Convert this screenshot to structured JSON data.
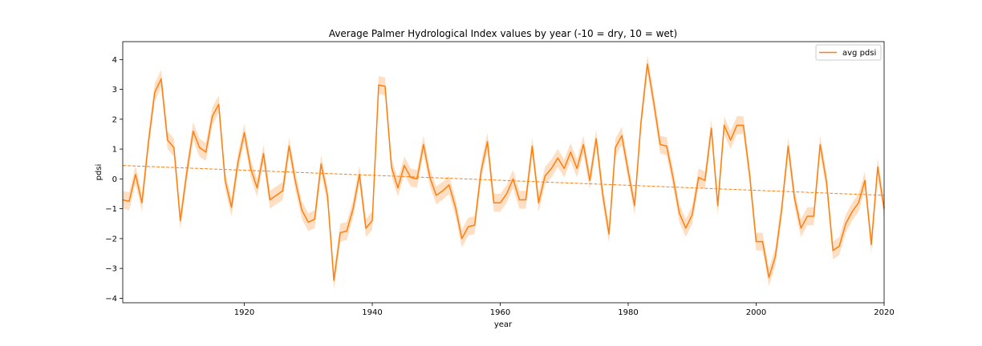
{
  "chart_data": {
    "type": "line",
    "title": "Average Palmer Hydrological Index values by year (-10 = dry, 10 = wet)",
    "xlabel": "year",
    "ylabel": "pdsi",
    "xlim": [
      1901,
      2020
    ],
    "ylim": [
      -4.15,
      4.6
    ],
    "xticks": [
      1920,
      1940,
      1960,
      1980,
      2000,
      2020
    ],
    "yticks": [
      -4,
      -3,
      -2,
      -1,
      0,
      1,
      2,
      3,
      4
    ],
    "grid": false,
    "legend": {
      "position": "top-right",
      "entries": [
        "avg pdsi"
      ]
    },
    "colors": {
      "line": "#ff7f0e",
      "band": "#ff7f0e",
      "trend": "#ff7f0e"
    },
    "series": [
      {
        "name": "avg pdsi",
        "x": [
          1901,
          1902,
          1903,
          1904,
          1905,
          1906,
          1907,
          1908,
          1909,
          1910,
          1911,
          1912,
          1913,
          1914,
          1915,
          1916,
          1917,
          1918,
          1919,
          1920,
          1921,
          1922,
          1923,
          1924,
          1925,
          1926,
          1927,
          1928,
          1929,
          1930,
          1931,
          1932,
          1933,
          1934,
          1935,
          1936,
          1937,
          1938,
          1939,
          1940,
          1941,
          1942,
          1943,
          1944,
          1945,
          1946,
          1947,
          1948,
          1949,
          1950,
          1951,
          1952,
          1953,
          1954,
          1955,
          1956,
          1957,
          1958,
          1959,
          1960,
          1961,
          1962,
          1963,
          1964,
          1965,
          1966,
          1967,
          1968,
          1969,
          1970,
          1971,
          1972,
          1973,
          1974,
          1975,
          1976,
          1977,
          1978,
          1979,
          1980,
          1981,
          1982,
          1983,
          1984,
          1985,
          1986,
          1987,
          1988,
          1989,
          1990,
          1991,
          1992,
          1993,
          1994,
          1995,
          1996,
          1997,
          1998,
          1999,
          2000,
          2001,
          2002,
          2003,
          2004,
          2005,
          2006,
          2007,
          2008,
          2009,
          2010,
          2011,
          2012,
          2013,
          2014,
          2015,
          2016,
          2017,
          2018,
          2019,
          2020
        ],
        "values": [
          -0.7,
          -0.75,
          0.15,
          -0.8,
          1.2,
          2.9,
          3.35,
          1.3,
          1.05,
          -1.4,
          0.2,
          1.6,
          1.05,
          0.9,
          2.1,
          2.5,
          -0.05,
          -0.95,
          0.55,
          1.55,
          0.35,
          -0.3,
          0.85,
          -0.7,
          -0.55,
          -0.4,
          1.1,
          -0.1,
          -1.05,
          -1.45,
          -1.35,
          0.5,
          -0.55,
          -3.4,
          -1.8,
          -1.75,
          -1.0,
          0.15,
          -1.65,
          -1.4,
          3.15,
          3.1,
          0.4,
          -0.3,
          0.45,
          0.05,
          0.0,
          1.15,
          0.05,
          -0.55,
          -0.4,
          -0.2,
          -0.95,
          -2.0,
          -1.6,
          -1.55,
          0.25,
          1.25,
          -0.8,
          -0.8,
          -0.5,
          0.0,
          -0.7,
          -0.7,
          1.1,
          -0.8,
          0.1,
          0.35,
          0.7,
          0.35,
          0.9,
          0.35,
          1.15,
          -0.05,
          1.35,
          -0.5,
          -1.85,
          1.05,
          1.45,
          0.25,
          -0.9,
          1.9,
          3.85,
          2.55,
          1.15,
          1.1,
          0.05,
          -1.15,
          -1.65,
          -1.2,
          0.05,
          -0.05,
          1.7,
          -0.9,
          1.8,
          1.3,
          1.8,
          1.8,
          0.1,
          -2.1,
          -2.1,
          -3.3,
          -2.6,
          -1.0,
          1.1,
          -0.65,
          -1.65,
          -1.25,
          -1.25,
          1.15,
          -0.1,
          -2.4,
          -2.25,
          -1.5,
          -1.1,
          -0.8,
          -0.05,
          -2.2,
          0.4,
          -1.0
        ],
        "band_halfwidth": 0.3
      }
    ],
    "trend": {
      "start": 0.45,
      "end": -0.55
    }
  }
}
